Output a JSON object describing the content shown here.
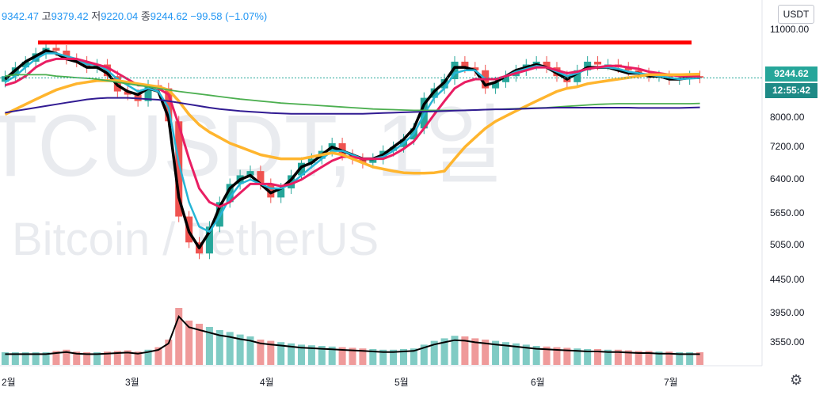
{
  "header": {
    "open": "9342.47",
    "high_label": "고",
    "high": "9379.42",
    "low_label": "저",
    "low": "9220.04",
    "close_label": "종",
    "close": "9244.62",
    "change": "−99.58 (−1.07%)"
  },
  "currency_button": "USDT",
  "watermark": {
    "symbol": "TCUSDT, 1일",
    "name": "Bitcoin / TetherUS"
  },
  "price_label": "9244.62",
  "time_label": "12:55:42",
  "colors": {
    "up": "#26a69a",
    "down": "#ef5350",
    "resistance": "#ff0000",
    "line_black": "#000000",
    "line_cyan": "#26b5d6",
    "line_pink": "#e91e63",
    "line_orange": "#ffb52e",
    "line_green": "#4caf50",
    "line_navy": "#311b92"
  },
  "chart_data": {
    "type": "candlestick",
    "y_axis_ticks": [
      "11000.00",
      "8000.00",
      "7200.00",
      "6400.00",
      "5650.00",
      "5050.00",
      "4450.00",
      "3950.00",
      "3550.00"
    ],
    "x_axis_ticks": [
      "2월",
      "3월",
      "4월",
      "5월",
      "6월",
      "7월"
    ],
    "scale": "log",
    "ylim": [
      3400,
      11500
    ],
    "current_price": 9244.62,
    "resistance_line": 10500,
    "candles_every_3_days_close": [
      9300,
      9600,
      9800,
      10100,
      10300,
      10200,
      9900,
      9800,
      9600,
      9700,
      9300,
      8800,
      8700,
      8500,
      9000,
      8900,
      7900,
      5600,
      5100,
      4900,
      5400,
      5900,
      6300,
      6500,
      6600,
      6300,
      6000,
      6200,
      6500,
      6800,
      6900,
      7100,
      7300,
      7000,
      6900,
      6800,
      6900,
      7100,
      7200,
      7400,
      7700,
      8600,
      8900,
      9200,
      9800,
      9600,
      9500,
      8900,
      9100,
      9300,
      9500,
      9700,
      9800,
      9600,
      9300,
      9100,
      9500,
      9800,
      9700,
      9700,
      9600,
      9500,
      9400,
      9300,
      9300,
      9200,
      9200,
      9300,
      9250
    ],
    "moving_averages": [
      {
        "color": "black",
        "values": [
          9200,
          9500,
          9800,
          10000,
          10200,
          10100,
          9900,
          9800,
          9600,
          9600,
          9400,
          9000,
          8800,
          8700,
          8900,
          8800,
          8000,
          6000,
          5300,
          5000,
          5300,
          5800,
          6200,
          6400,
          6500,
          6300,
          6100,
          6200,
          6400,
          6700,
          6800,
          7000,
          7200,
          7100,
          7000,
          6900,
          6900,
          7000,
          7200,
          7400,
          7700,
          8400,
          8800,
          9100,
          9600,
          9600,
          9500,
          9000,
          9100,
          9300,
          9500,
          9600,
          9700,
          9600,
          9400,
          9200,
          9400,
          9600,
          9600,
          9600,
          9500,
          9400,
          9400,
          9300,
          9300,
          9200,
          9200,
          9250,
          9250
        ]
      },
      {
        "color": "cyan",
        "values": [
          9100,
          9300,
          9600,
          9900,
          10100,
          10100,
          10000,
          9900,
          9700,
          9700,
          9500,
          9200,
          9000,
          8800,
          8900,
          8800,
          8300,
          6800,
          5900,
          5400,
          5300,
          5600,
          6000,
          6300,
          6400,
          6300,
          6200,
          6200,
          6300,
          6500,
          6700,
          6900,
          7100,
          7100,
          7000,
          6900,
          6900,
          6950,
          7100,
          7300,
          7550,
          8100,
          8600,
          8900,
          9400,
          9500,
          9500,
          9200,
          9200,
          9300,
          9450,
          9550,
          9650,
          9600,
          9450,
          9300,
          9400,
          9550,
          9600,
          9600,
          9550,
          9450,
          9400,
          9350,
          9300,
          9250,
          9200,
          9220,
          9240
        ]
      },
      {
        "color": "pink",
        "values": [
          9000,
          9100,
          9300,
          9600,
          9800,
          9900,
          9900,
          9900,
          9800,
          9700,
          9600,
          9400,
          9200,
          9000,
          9000,
          8900,
          8700,
          7800,
          6900,
          6200,
          5900,
          5800,
          5900,
          6100,
          6300,
          6300,
          6300,
          6250,
          6300,
          6400,
          6550,
          6700,
          6850,
          6950,
          6950,
          6900,
          6900,
          6900,
          7000,
          7150,
          7350,
          7700,
          8100,
          8500,
          8900,
          9100,
          9200,
          9200,
          9200,
          9300,
          9400,
          9500,
          9600,
          9600,
          9500,
          9400,
          9450,
          9550,
          9600,
          9650,
          9650,
          9600,
          9550,
          9450,
          9400,
          9350,
          9300,
          9300,
          9290
        ]
      },
      {
        "color": "orange",
        "values": [
          8100,
          8250,
          8400,
          8550,
          8700,
          8850,
          8950,
          9050,
          9100,
          9150,
          9150,
          9150,
          9100,
          9050,
          9000,
          8950,
          8850,
          8500,
          8100,
          7800,
          7600,
          7450,
          7300,
          7200,
          7100,
          7000,
          6950,
          6900,
          6900,
          6900,
          6950,
          7000,
          7050,
          7000,
          6900,
          6800,
          6700,
          6650,
          6600,
          6560,
          6550,
          6550,
          6560,
          6600,
          6900,
          7200,
          7450,
          7700,
          7900,
          8050,
          8200,
          8350,
          8500,
          8650,
          8800,
          8900,
          8950,
          9050,
          9100,
          9150,
          9200,
          9250,
          9300,
          9350,
          9350,
          9350,
          9350,
          9360,
          9370
        ]
      },
      {
        "color": "green",
        "values": [
          9300,
          9350,
          9350,
          9350,
          9350,
          9300,
          9280,
          9250,
          9230,
          9200,
          9150,
          9100,
          9050,
          9000,
          8950,
          8900,
          8850,
          8800,
          8760,
          8720,
          8680,
          8640,
          8600,
          8560,
          8530,
          8500,
          8470,
          8440,
          8420,
          8400,
          8380,
          8360,
          8340,
          8320,
          8300,
          8280,
          8260,
          8250,
          8240,
          8230,
          8220,
          8220,
          8220,
          8220,
          8220,
          8220,
          8230,
          8240,
          8250,
          8260,
          8270,
          8280,
          8290,
          8300,
          8320,
          8340,
          8360,
          8380,
          8400,
          8410,
          8420,
          8420,
          8420,
          8420,
          8420,
          8420,
          8420,
          8420,
          8430
        ]
      },
      {
        "color": "navy",
        "values": [
          8150,
          8200,
          8250,
          8300,
          8350,
          8400,
          8450,
          8500,
          8550,
          8580,
          8600,
          8600,
          8600,
          8580,
          8560,
          8540,
          8500,
          8450,
          8400,
          8350,
          8300,
          8260,
          8230,
          8200,
          8180,
          8160,
          8140,
          8130,
          8120,
          8120,
          8120,
          8120,
          8120,
          8120,
          8120,
          8120,
          8130,
          8140,
          8150,
          8160,
          8170,
          8180,
          8190,
          8200,
          8210,
          8220,
          8230,
          8240,
          8250,
          8250,
          8260,
          8270,
          8280,
          8290,
          8300,
          8300,
          8300,
          8300,
          8300,
          8300,
          8300,
          8300,
          8290,
          8290,
          8290,
          8290,
          8290,
          8300,
          8310
        ]
      }
    ],
    "volume": [
      2,
      2,
      2,
      2,
      2,
      2.2,
      2.4,
      2.1,
      2,
      2,
      2.1,
      2.2,
      2.3,
      2.1,
      2.4,
      2.8,
      4,
      9,
      7,
      6.5,
      6,
      5.5,
      5.2,
      4.8,
      4.5,
      4,
      3.8,
      3.6,
      3.4,
      3.2,
      3.1,
      3,
      2.9,
      2.8,
      2.7,
      2.6,
      2.5,
      2.4,
      2.4,
      2.5,
      2.6,
      3.2,
      3.8,
      4.2,
      4.6,
      4.5,
      4.2,
      4,
      3.8,
      3.6,
      3.4,
      3.2,
      3,
      2.9,
      2.8,
      2.7,
      2.6,
      2.5,
      2.5,
      2.4,
      2.4,
      2.3,
      2.2,
      2.2,
      2.1,
      2.1,
      2,
      2,
      2
    ]
  }
}
